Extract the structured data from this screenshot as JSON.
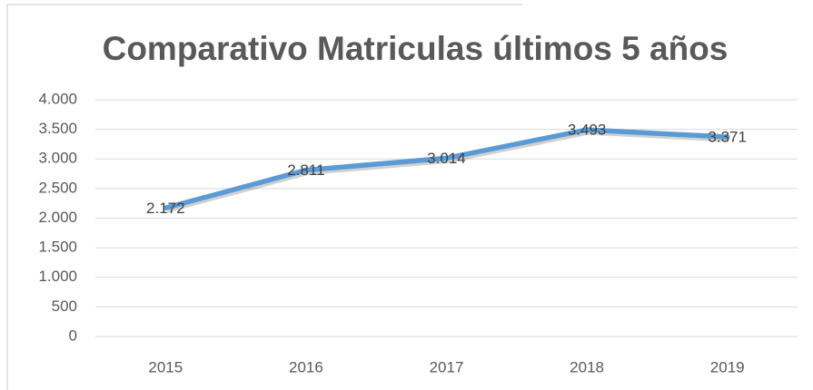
{
  "chart_data": {
    "type": "line",
    "title": "Comparativo Matriculas últimos 5 años",
    "categories": [
      "2015",
      "2016",
      "2017",
      "2018",
      "2019"
    ],
    "series": [
      {
        "color": "#5b9bd5",
        "values": [
          2172,
          2811,
          3014,
          3493,
          3371
        ],
        "value_labels": [
          "2.172",
          "2.811",
          "3.014",
          "3.493",
          "3.371"
        ]
      }
    ],
    "ylim": [
      0,
      4000
    ],
    "yticks": [
      0,
      500,
      {
        "value": 1000,
        "label": "1.000"
      },
      {
        "value": 1500,
        "label": "1.500"
      },
      {
        "value": 2000,
        "label": "2.000"
      },
      {
        "value": 2500,
        "label": "2.500"
      },
      {
        "value": 3000,
        "label": "3.000"
      },
      {
        "value": 3500,
        "label": "3.500"
      },
      {
        "value": 4000,
        "label": "4.000"
      }
    ],
    "grid": true
  }
}
